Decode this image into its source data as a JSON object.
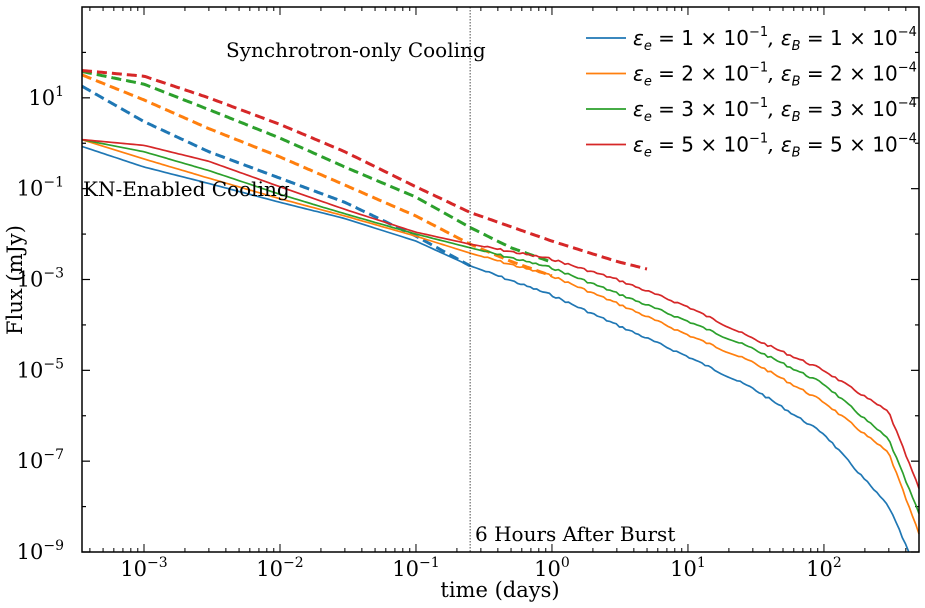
{
  "chart_data": {
    "type": "line",
    "xscale": "log",
    "yscale": "log",
    "xlabel": "time (days)",
    "ylabel": "Flux (mJy)",
    "xlim": [
      0.00035,
      500
    ],
    "ylim": [
      1e-09,
      1000
    ],
    "x_ticks": [
      {
        "value": 0.001,
        "base": "10",
        "exp": "−3"
      },
      {
        "value": 0.01,
        "base": "10",
        "exp": "−2"
      },
      {
        "value": 0.1,
        "base": "10",
        "exp": "−1"
      },
      {
        "value": 1,
        "base": "10",
        "exp": "0"
      },
      {
        "value": 10,
        "base": "10",
        "exp": "1"
      },
      {
        "value": 100,
        "base": "10",
        "exp": "2"
      }
    ],
    "y_ticks": [
      {
        "value": 10,
        "base": "10",
        "exp": "1"
      },
      {
        "value": 0.1,
        "base": "10",
        "exp": "−1"
      },
      {
        "value": 0.001,
        "base": "10",
        "exp": "−3"
      },
      {
        "value": 1e-05,
        "base": "10",
        "exp": "−5"
      },
      {
        "value": 1e-07,
        "base": "10",
        "exp": "−7"
      },
      {
        "value": 1e-09,
        "base": "10",
        "exp": "−9"
      }
    ],
    "vline": {
      "x": 0.25,
      "label": "6 Hours After Burst"
    },
    "annotations": [
      {
        "text": "Synchrotron-only Cooling",
        "x": 0.004,
        "y": 11
      },
      {
        "text": "KN-Enabled Cooling",
        "x": 0.00036,
        "y": 0.017
      }
    ],
    "legend_position": "top-right",
    "series": [
      {
        "name": "εe = 1×10⁻¹, εB = 1×10⁻⁴",
        "legend": {
          "ee_mant": "1",
          "ee_exp": "−1",
          "eb_mant": "1",
          "eb_exp": "−4"
        },
        "color": "#1f77b4",
        "kn_enabled": {
          "x": [
            0.00035,
            0.001,
            0.003,
            0.01,
            0.03,
            0.1,
            0.25,
            1,
            3,
            10,
            30,
            100,
            300,
            420
          ],
          "y": [
            0.85,
            0.3,
            0.13,
            0.05,
            0.022,
            0.007,
            0.002,
            0.00045,
            0.0001,
            2e-05,
            4e-06,
            4e-07,
            1e-08,
            1e-09
          ]
        },
        "synchrotron_only": {
          "x": [
            0.00035,
            0.001,
            0.003,
            0.01,
            0.03,
            0.1,
            0.25
          ],
          "y": [
            18,
            3,
            0.65,
            0.17,
            0.05,
            0.009,
            0.002
          ]
        }
      },
      {
        "name": "εe = 2×10⁻¹, εB = 2×10⁻⁴",
        "legend": {
          "ee_mant": "2",
          "ee_exp": "−1",
          "eb_mant": "2",
          "eb_exp": "−4"
        },
        "color": "#ff7f0e",
        "kn_enabled": {
          "x": [
            0.00035,
            0.001,
            0.003,
            0.01,
            0.03,
            0.1,
            0.25,
            1,
            3,
            10,
            30,
            100,
            300,
            500
          ],
          "y": [
            1.2,
            0.45,
            0.17,
            0.06,
            0.025,
            0.009,
            0.0038,
            0.0012,
            0.0003,
            6e-05,
            1.5e-05,
            2e-06,
            1.5e-07,
            2.5e-09
          ]
        },
        "synchrotron_only": {
          "x": [
            0.00035,
            0.001,
            0.003,
            0.01,
            0.03,
            0.1,
            0.25,
            0.5,
            1
          ],
          "y": [
            32,
            9,
            2.1,
            0.5,
            0.12,
            0.025,
            0.006,
            0.0025,
            0.0012
          ]
        }
      },
      {
        "name": "εe = 3×10⁻¹, εB = 3×10⁻⁴",
        "legend": {
          "ee_mant": "3",
          "ee_exp": "−1",
          "eb_mant": "3",
          "eb_exp": "−4"
        },
        "color": "#2ca02c",
        "kn_enabled": {
          "x": [
            0.00035,
            0.001,
            0.003,
            0.01,
            0.03,
            0.1,
            0.25,
            1,
            3,
            10,
            30,
            100,
            300,
            500
          ],
          "y": [
            1.2,
            0.65,
            0.25,
            0.075,
            0.028,
            0.01,
            0.005,
            0.0018,
            0.0005,
            0.00012,
            3e-05,
            5e-06,
            3e-07,
            7e-09
          ]
        },
        "synchrotron_only": {
          "x": [
            0.00035,
            0.001,
            0.003,
            0.01,
            0.03,
            0.1,
            0.25,
            0.5,
            1
          ],
          "y": [
            38,
            20,
            5.5,
            1.3,
            0.3,
            0.065,
            0.014,
            0.005,
            0.0024
          ]
        }
      },
      {
        "name": "εe = 5×10⁻¹, εB = 5×10⁻⁴",
        "legend": {
          "ee_mant": "5",
          "ee_exp": "−1",
          "eb_mant": "5",
          "eb_exp": "−4"
        },
        "color": "#d62728",
        "kn_enabled": {
          "x": [
            0.00035,
            0.001,
            0.003,
            0.01,
            0.03,
            0.1,
            0.25,
            1,
            3,
            10,
            30,
            100,
            300,
            500
          ],
          "y": [
            1.2,
            0.9,
            0.4,
            0.11,
            0.035,
            0.011,
            0.006,
            0.0028,
            0.001,
            0.00025,
            5e-05,
            1e-05,
            1.2e-06,
            2.5e-08
          ]
        },
        "synchrotron_only": {
          "x": [
            0.00035,
            0.001,
            0.003,
            0.01,
            0.03,
            0.1,
            0.25,
            1,
            3,
            5
          ],
          "y": [
            40,
            30,
            10,
            2.6,
            0.65,
            0.11,
            0.03,
            0.007,
            0.0025,
            0.0017
          ]
        }
      }
    ]
  }
}
